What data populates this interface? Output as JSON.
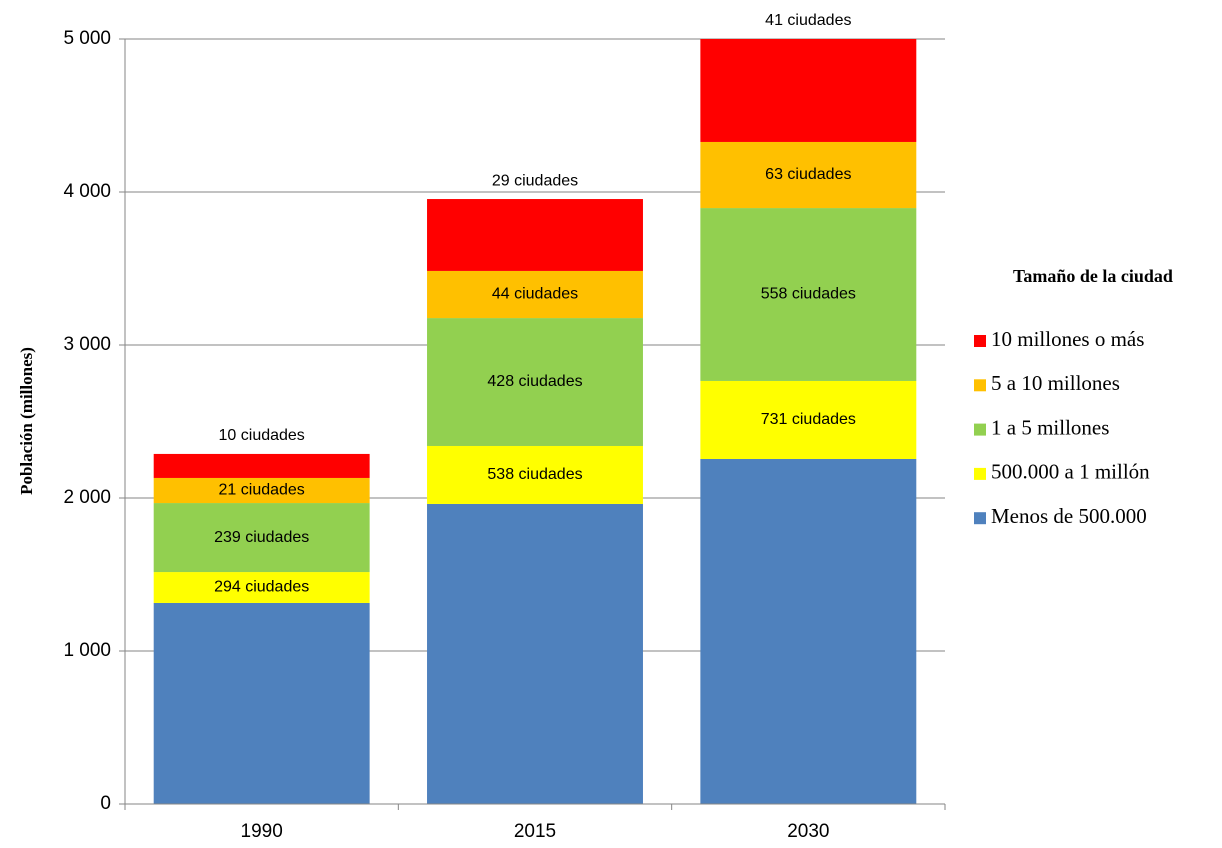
{
  "chart_data": {
    "type": "stacked_bar",
    "y_label": "Población (millones)",
    "legend_title": "Tamaño de la ciudad",
    "categories": [
      "1990",
      "2015",
      "2030"
    ],
    "series": [
      {
        "name": "Menos de 500.000",
        "color": "#4f81bd",
        "values": [
          1314,
          1961,
          2255
        ],
        "labels": [
          null,
          null,
          null
        ]
      },
      {
        "name": "500.000 a 1 millón",
        "color": "#ffff00",
        "values": [
          202,
          379,
          510
        ],
        "labels": [
          "294 ciudades",
          "538 ciudades",
          "731 ciudades"
        ]
      },
      {
        "name": "1 a 5 millones",
        "color": "#92d050",
        "values": [
          451,
          836,
          1130
        ],
        "labels": [
          "239 ciudades",
          "428 ciudades",
          "558 ciudades"
        ]
      },
      {
        "name": "5 a 10 millones",
        "color": "#ffc000",
        "values": [
          164,
          308,
          432
        ],
        "labels": [
          "21 ciudades",
          "44 ciudades",
          "63 ciudades"
        ]
      },
      {
        "name": "10 millones o más",
        "color": "#ff0000",
        "values": [
          157,
          470,
          673
        ],
        "labels": [
          "10 ciudades",
          "29 ciudades",
          "41 ciudades"
        ]
      }
    ],
    "ylim": [
      0,
      5000
    ],
    "yticks": [
      0,
      {
        "value": 1000,
        "label": "1 000"
      },
      {
        "value": 2000,
        "label": "2 000"
      },
      {
        "value": 3000,
        "label": "3 000"
      },
      {
        "value": 4000,
        "label": "4 000"
      },
      {
        "value": 5000,
        "label": "5 000"
      }
    ],
    "grid": true,
    "legend": "right"
  }
}
